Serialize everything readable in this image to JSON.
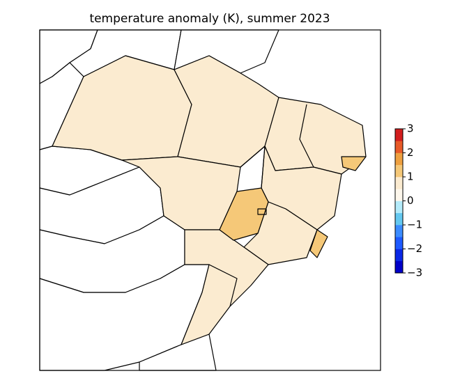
{
  "title": "temperature anomaly (K), summer 2023",
  "colorbar": {
    "lim": [
      -3,
      3
    ],
    "ticks": [
      {
        "value": -3,
        "label": "−3"
      },
      {
        "value": -2,
        "label": "−2"
      },
      {
        "value": -1,
        "label": "−1"
      },
      0,
      1,
      2,
      3
    ],
    "colors": [
      "#0000c8",
      "#0a28e6",
      "#1e5aff",
      "#3c8cff",
      "#64c8f0",
      "#b4ebfa",
      "#fdf7ec",
      "#fbebd0",
      "#f5c878",
      "#eea040",
      "#e85a28",
      "#d21e1e"
    ]
  }
}
